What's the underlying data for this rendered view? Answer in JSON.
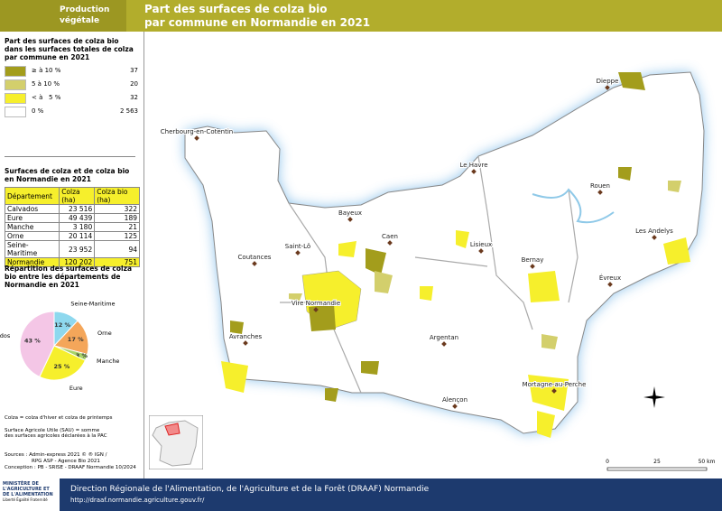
{
  "header": {
    "section": "Production végétale",
    "title_line1": "Part des surfaces de colza bio",
    "title_line2": "par commune en Normandie en 2021"
  },
  "legend": {
    "title": "Part des surfaces de colza bio dans les surfaces totales de colza par commune en 2021",
    "classes": [
      {
        "label": "≥ à 10 %",
        "count": "37",
        "color": "#a39d1c"
      },
      {
        "label": "5 à 10 %",
        "count": "20",
        "color": "#d3cf6c"
      },
      {
        "label": "< à   5 %",
        "count": "32",
        "color": "#f6ef2c"
      },
      {
        "label": "0 %",
        "count": "2 563",
        "color": "#ffffff"
      }
    ]
  },
  "table": {
    "title": "Surfaces de colza et de colza bio en Normandie en 2021",
    "header": [
      "Département",
      "Colza (ha)",
      "Colza bio (ha)"
    ],
    "rows": [
      [
        "Calvados",
        "23 516",
        "322"
      ],
      [
        "Eure",
        "49 439",
        "189"
      ],
      [
        "Manche",
        "3 180",
        "21"
      ],
      [
        "Orne",
        "20 114",
        "125"
      ],
      [
        "Seine-Maritime",
        "23 952",
        "94"
      ],
      [
        "Normandie",
        "120 202",
        "751"
      ]
    ]
  },
  "pie": {
    "title": "Répartition des surfaces de colza bio entre les départements de Normandie en 2021",
    "slices": [
      {
        "name": "Seine-Maritime",
        "value": 12,
        "value_label": "12 %",
        "color": "#8ed8ee"
      },
      {
        "name": "Orne",
        "value": 17,
        "value_label": "17 %",
        "color": "#f4a65a"
      },
      {
        "name": "Manche",
        "value": 3,
        "value_label": "3 %",
        "color": "#a8d46a"
      },
      {
        "name": "Eure",
        "value": 25,
        "value_label": "25 %",
        "color": "#f6ef2c"
      },
      {
        "name": "Calvados",
        "value": 43,
        "value_label": "43 %",
        "color": "#f4c6e6"
      }
    ]
  },
  "notes": [
    "Colza = colza d'hiver et colza de printemps",
    "Surface Agricole Utile (SAU) = somme des surfaces agricoles déclarées à la PAC"
  ],
  "sources": {
    "label": "Sources",
    "lines": [
      ": Admin-express 2021 © ® IGN /",
      "RPG ASP - Agence Bio 2021"
    ],
    "conception": "Conception : PB - SRISE - DRAAF Normandie 10/2024"
  },
  "map": {
    "cities": [
      "Dieppe",
      "Cherbourg-en-Cotentin",
      "Le Havre",
      "Rouen",
      "Bayeux",
      "Caen",
      "Les Andelys",
      "Saint-Lô",
      "Lisieux",
      "Coutances",
      "Bernay",
      "Évreux",
      "Vire Normandie",
      "Argentan",
      "Avranches",
      "Mortagne-au-Perche",
      "Alençon"
    ],
    "scale": [
      "0",
      "25",
      "50 km"
    ]
  },
  "footer": {
    "ministry": "MINISTÈRE DE L'AGRICULTURE ET DE L'ALIMENTATION",
    "motto": "Liberté Égalité Fraternité",
    "org": "Direction Régionale de l'Alimentation, de l'Agriculture et de la Forêt (DRAAF) Normandie",
    "url": "http://draaf.normandie.agriculture.gouv.fr/"
  }
}
